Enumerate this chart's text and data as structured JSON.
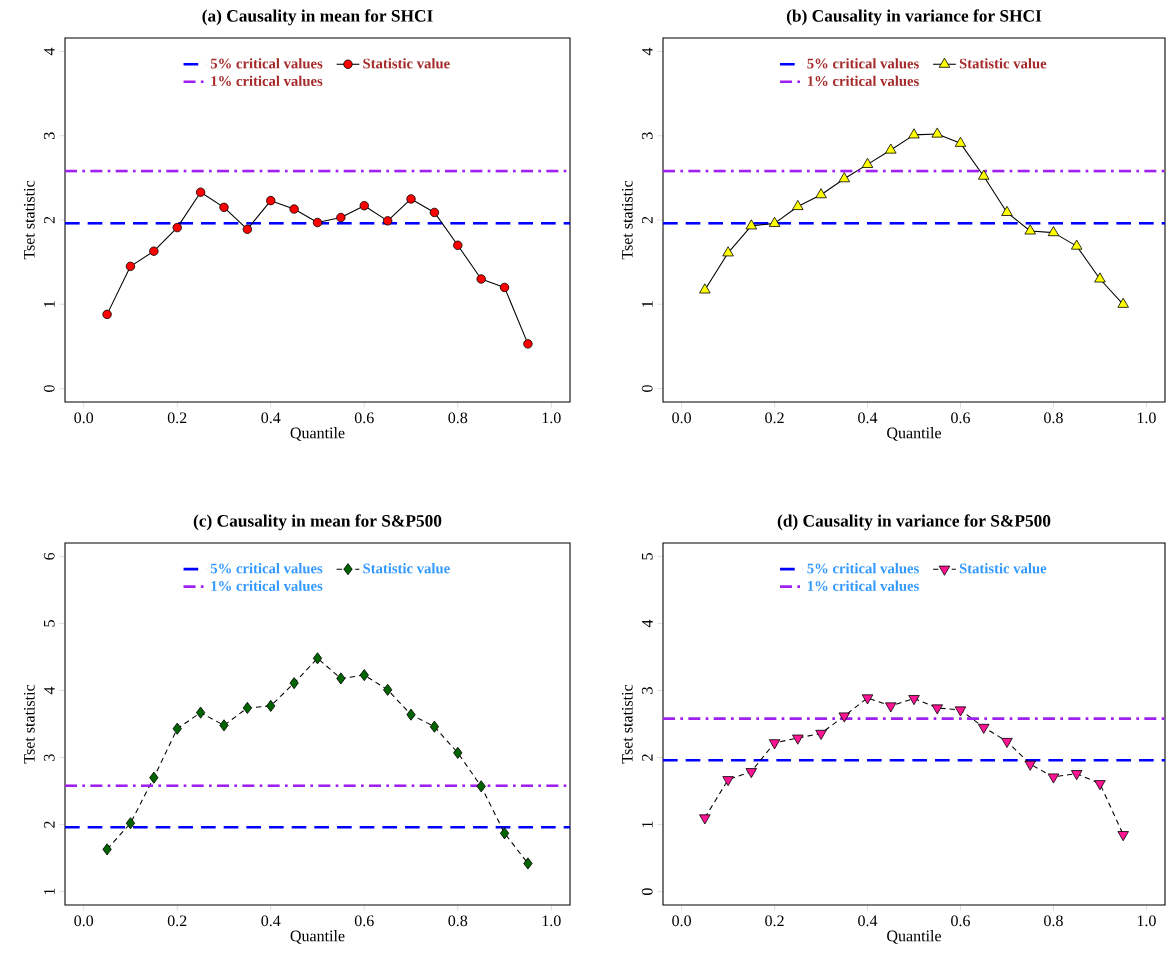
{
  "chart_data": [
    {
      "type": "line",
      "title": "(a) Causality in mean for SHCI",
      "xlabel": "Quantile",
      "ylabel": "Tset statistic",
      "x": [
        0.05,
        0.1,
        0.15,
        0.2,
        0.25,
        0.3,
        0.35,
        0.4,
        0.45,
        0.5,
        0.55,
        0.6,
        0.65,
        0.7,
        0.75,
        0.8,
        0.85,
        0.9,
        0.95
      ],
      "series": [
        {
          "name": "Statistic value",
          "color": "#ff0000",
          "marker": "circle",
          "line_style": "solid",
          "values": [
            0.88,
            1.45,
            1.63,
            1.91,
            2.33,
            2.15,
            1.89,
            2.23,
            2.13,
            1.97,
            2.03,
            2.17,
            1.99,
            2.25,
            2.09,
            1.7,
            1.3,
            1.2,
            0.53
          ]
        }
      ],
      "ref_lines": [
        {
          "axis": "y",
          "value": 1.96,
          "label": "5% critical values",
          "color": "#0000ff",
          "line_style": "dashed"
        },
        {
          "axis": "y",
          "value": 2.58,
          "label": "1% critical values",
          "color": "#a020f0",
          "line_style": "dashdot"
        }
      ],
      "xlim": [
        -0.04,
        1.04
      ],
      "ylim": [
        -0.16,
        4.16
      ],
      "xticks": [
        {
          "value": 0,
          "label": "0.0"
        },
        {
          "value": 0.2,
          "label": "0.2"
        },
        {
          "value": 0.4,
          "label": "0.4"
        },
        {
          "value": 0.6,
          "label": "0.6"
        },
        {
          "value": 0.8,
          "label": "0.8"
        },
        {
          "value": 1,
          "label": "1.0"
        }
      ],
      "yticks": [
        0,
        1,
        2,
        3,
        4
      ],
      "legend": "top"
    },
    {
      "type": "line",
      "title": "(b) Causality in variance for SHCI",
      "xlabel": "Quantile",
      "ylabel": "Tset statistic",
      "x": [
        0.05,
        0.1,
        0.15,
        0.2,
        0.25,
        0.3,
        0.35,
        0.4,
        0.45,
        0.5,
        0.55,
        0.6,
        0.65,
        0.7,
        0.75,
        0.8,
        0.85,
        0.9,
        0.95
      ],
      "series": [
        {
          "name": "Statistic value",
          "color": "#ffff00",
          "marker": "triangle",
          "line_style": "solid",
          "values": [
            1.17,
            1.61,
            1.93,
            1.96,
            2.16,
            2.3,
            2.49,
            2.66,
            2.83,
            3.01,
            3.02,
            2.91,
            2.52,
            2.09,
            1.87,
            1.85,
            1.69,
            1.3,
            1.0
          ]
        }
      ],
      "ref_lines": [
        {
          "axis": "y",
          "value": 1.96,
          "label": "5% critical values",
          "color": "#0000ff",
          "line_style": "dashed"
        },
        {
          "axis": "y",
          "value": 2.58,
          "label": "1% critical values",
          "color": "#a020f0",
          "line_style": "dashdot"
        }
      ],
      "xlim": [
        -0.04,
        1.04
      ],
      "ylim": [
        -0.16,
        4.16
      ],
      "xticks": [
        {
          "value": 0,
          "label": "0.0"
        },
        {
          "value": 0.2,
          "label": "0.2"
        },
        {
          "value": 0.4,
          "label": "0.4"
        },
        {
          "value": 0.6,
          "label": "0.6"
        },
        {
          "value": 0.8,
          "label": "0.8"
        },
        {
          "value": 1,
          "label": "1.0"
        }
      ],
      "yticks": [
        0,
        1,
        2,
        3,
        4
      ],
      "legend": "top"
    },
    {
      "type": "line",
      "title": "(c) Causality in mean for S&P500",
      "xlabel": "Quantile",
      "ylabel": "Tset statistic",
      "x": [
        0.05,
        0.1,
        0.15,
        0.2,
        0.25,
        0.3,
        0.35,
        0.4,
        0.45,
        0.5,
        0.55,
        0.6,
        0.65,
        0.7,
        0.75,
        0.8,
        0.85,
        0.9,
        0.95
      ],
      "series": [
        {
          "name": "Statistic value",
          "color": "#006400",
          "marker": "diamond",
          "line_style": "dashed",
          "values": [
            1.63,
            2.02,
            2.7,
            3.43,
            3.67,
            3.48,
            3.74,
            3.77,
            4.11,
            4.48,
            4.18,
            4.23,
            4.01,
            3.64,
            3.46,
            3.07,
            2.57,
            1.87,
            1.42
          ]
        }
      ],
      "ref_lines": [
        {
          "axis": "y",
          "value": 1.96,
          "label": "5% critical values",
          "color": "#0000ff",
          "line_style": "dashed"
        },
        {
          "axis": "y",
          "value": 2.58,
          "label": "1% critical values",
          "color": "#a020f0",
          "line_style": "dashdot"
        }
      ],
      "xlim": [
        -0.04,
        1.04
      ],
      "ylim": [
        0.8,
        6.2
      ],
      "xticks": [
        {
          "value": 0,
          "label": "0.0"
        },
        {
          "value": 0.2,
          "label": "0.2"
        },
        {
          "value": 0.4,
          "label": "0.4"
        },
        {
          "value": 0.6,
          "label": "0.6"
        },
        {
          "value": 0.8,
          "label": "0.8"
        },
        {
          "value": 1,
          "label": "1.0"
        }
      ],
      "yticks": [
        1,
        2,
        3,
        4,
        5,
        6
      ],
      "legend": "top"
    },
    {
      "type": "line",
      "title": "(d) Causality in variance for S&P500",
      "xlabel": "Quantile",
      "ylabel": "Tset statistic",
      "x": [
        0.05,
        0.1,
        0.15,
        0.2,
        0.25,
        0.3,
        0.35,
        0.4,
        0.45,
        0.5,
        0.55,
        0.6,
        0.65,
        0.7,
        0.75,
        0.8,
        0.85,
        0.9,
        0.95
      ],
      "series": [
        {
          "name": "Statistic value",
          "color": "#ff1493",
          "marker": "triangle-down",
          "line_style": "dashed",
          "values": [
            1.1,
            1.67,
            1.79,
            2.22,
            2.29,
            2.36,
            2.62,
            2.89,
            2.77,
            2.88,
            2.74,
            2.71,
            2.45,
            2.24,
            1.9,
            1.71,
            1.76,
            1.61,
            0.85
          ]
        }
      ],
      "ref_lines": [
        {
          "axis": "y",
          "value": 1.96,
          "label": "5% critical values",
          "color": "#0000ff",
          "line_style": "dashed"
        },
        {
          "axis": "y",
          "value": 2.58,
          "label": "1% critical values",
          "color": "#a020f0",
          "line_style": "dashdot"
        }
      ],
      "xlim": [
        -0.04,
        1.04
      ],
      "ylim": [
        -0.2,
        5.2
      ],
      "xticks": [
        {
          "value": 0,
          "label": "0.0"
        },
        {
          "value": 0.2,
          "label": "0.2"
        },
        {
          "value": 0.4,
          "label": "0.4"
        },
        {
          "value": 0.6,
          "label": "0.6"
        },
        {
          "value": 0.8,
          "label": "0.8"
        },
        {
          "value": 1,
          "label": "1.0"
        }
      ],
      "yticks": [
        0,
        1,
        2,
        3,
        4,
        5
      ],
      "legend": "top"
    }
  ]
}
